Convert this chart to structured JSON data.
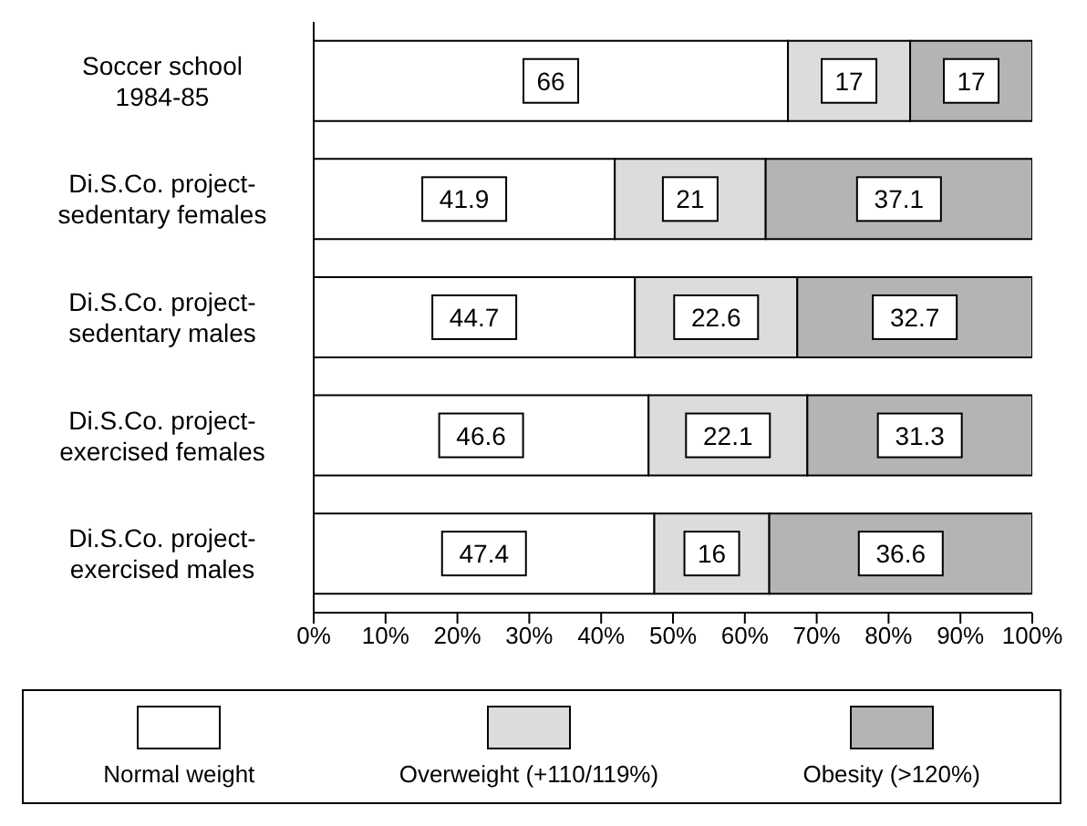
{
  "chart_data": {
    "type": "bar",
    "orientation": "horizontal",
    "stacked": true,
    "data_labels": true,
    "categories": [
      "Soccer school 1984-85",
      "Di.S.Co. project-sedentary females",
      "Di.S.Co. project-sedentary males",
      "Di.S.Co. project-exercised females",
      "Di.S.Co. project-exercised males"
    ],
    "series": [
      {
        "name": "Normal weight",
        "color": "#ffffff",
        "values": [
          66,
          41.9,
          44.7,
          46.6,
          47.4
        ]
      },
      {
        "name": "Overweight (+110/119%)",
        "color": "#dcdcdc",
        "values": [
          17,
          21,
          22.6,
          22.1,
          16
        ]
      },
      {
        "name": "Obesity (>120%)",
        "color": "#b4b4b4",
        "values": [
          17,
          37.1,
          32.7,
          31.3,
          36.6
        ]
      }
    ],
    "xlim": [
      0,
      100
    ],
    "xticks": [
      {
        "value": 0,
        "label": "0%"
      },
      {
        "value": 10,
        "label": "10%"
      },
      {
        "value": 20,
        "label": "20%"
      },
      {
        "value": 30,
        "label": "30%"
      },
      {
        "value": 40,
        "label": "40%"
      },
      {
        "value": 50,
        "label": "50%"
      },
      {
        "value": 60,
        "label": "60%"
      },
      {
        "value": 70,
        "label": "70%"
      },
      {
        "value": 80,
        "label": "80%"
      },
      {
        "value": 90,
        "label": "90%"
      },
      {
        "value": 100,
        "label": "100%"
      }
    ],
    "grid": false,
    "legend": "bottom"
  }
}
